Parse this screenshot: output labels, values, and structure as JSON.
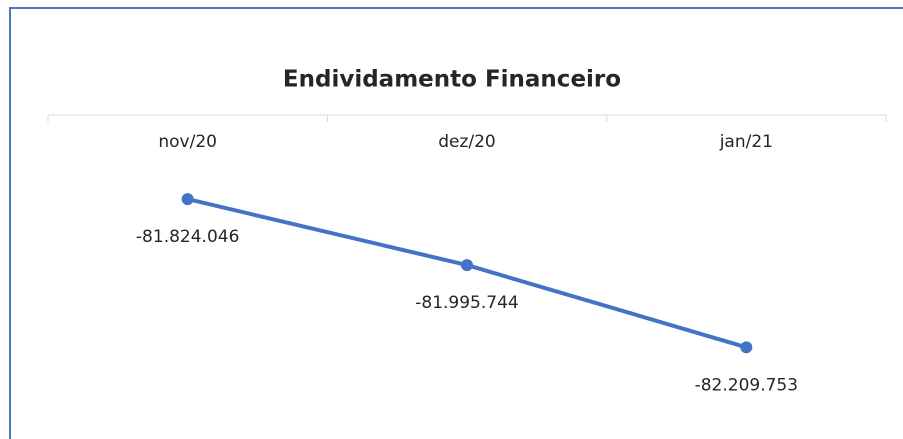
{
  "chart_data": {
    "type": "line",
    "title": "Endividamento Financeiro",
    "categories": [
      "nov/20",
      "dez/20",
      "jan/21"
    ],
    "series": [
      {
        "name": "Endividamento Financeiro",
        "color": "#4472c4",
        "values": [
          -81824046,
          -81995744,
          -82209753
        ],
        "value_labels": [
          "-81.824.046",
          "-81.995.744",
          "-82.209.753"
        ]
      }
    ],
    "ylim": [
      -82300000,
      -81600000
    ]
  }
}
